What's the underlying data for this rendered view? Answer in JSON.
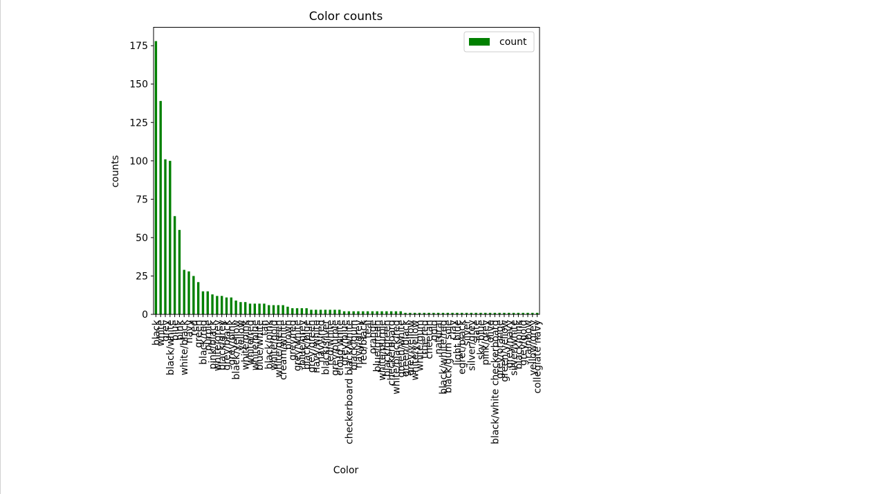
{
  "chart_data": {
    "type": "bar",
    "title": "Color counts",
    "xlabel": "Color",
    "ylabel": "counts",
    "ylim": [
      0,
      187
    ],
    "yticks": [
      0,
      25,
      50,
      75,
      100,
      125,
      150,
      175
    ],
    "legend": {
      "label": "count",
      "position": "top-right"
    },
    "bar_color": "#008000",
    "grid": false,
    "categories": [
      "black",
      "white",
      "grey",
      "black/white",
      "blue",
      "pink",
      "white/black",
      "navy",
      "red",
      "green",
      "black/red",
      "purple",
      "pink/black",
      "white/grey",
      "black/grey",
      "grey/black",
      "grey/pink",
      "black/yellow",
      "yellow",
      "white/pink",
      "white/red",
      "white/blue",
      "blue/white",
      "tan",
      "black/pink",
      "white/gold",
      "white/green",
      "cream/white",
      "brown",
      "grey/red",
      "grey/white",
      "blue/grey",
      "black/blue",
      "grey/green",
      "navy/white",
      "navy/red",
      "black/silver",
      "red/white",
      "grey/purple",
      "cloud white",
      "grey/blue",
      "checkerboard black/white",
      "black/gum",
      "navy/grey",
      "red/black",
      "teal",
      "orange",
      "blue/green",
      "white/purple",
      "black/green",
      "checkerboard",
      "white/black/red",
      "green/white",
      "green/black",
      "grey/yellow",
      "white/yellow",
      "white/gum",
      "true red",
      "cheetah",
      "gold",
      "natural",
      "black/white/red",
      "black/gum sole",
      "clay",
      "light blue",
      "egret/black",
      "silver",
      "silver/grey",
      "slate",
      "sky blue",
      "pink/grey",
      "olive",
      "black/white checkerboard",
      "grey/orange",
      "green/yellow",
      "grey/navy",
      "silver/white",
      "black/pink",
      "grey/gold",
      "rainbow",
      "yellow/grey",
      "collegiate navy"
    ],
    "values": [
      178,
      139,
      101,
      100,
      64,
      55,
      29,
      28,
      25,
      21,
      15,
      15,
      13,
      12,
      12,
      11,
      11,
      9,
      8,
      8,
      7,
      7,
      7,
      7,
      6,
      6,
      6,
      6,
      5,
      4,
      4,
      4,
      4,
      3,
      3,
      3,
      3,
      3,
      3,
      3,
      2,
      2,
      2,
      2,
      2,
      2,
      2,
      2,
      2,
      2,
      2,
      2,
      2,
      1,
      1,
      1,
      1,
      1,
      1,
      1,
      1,
      1,
      1,
      1,
      1,
      1,
      1,
      1,
      1,
      1,
      1,
      1,
      1,
      1,
      1,
      1,
      1,
      1,
      1,
      1,
      1,
      1
    ]
  }
}
